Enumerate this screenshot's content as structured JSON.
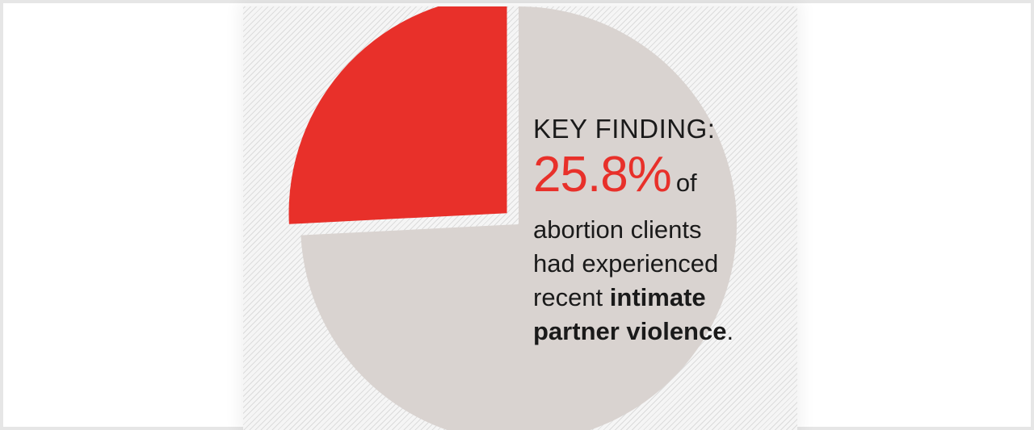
{
  "chart_data": {
    "type": "pie",
    "slices": [
      {
        "value": 25.8,
        "color": "#e8302a",
        "exploded": true
      },
      {
        "value": 74.2,
        "color": "#d9d3d0",
        "exploded": false
      }
    ],
    "title": "KEY FINDING:",
    "annotation": {
      "stat": "25.8%",
      "of": "of",
      "line1": "abortion clients",
      "line2": "had experienced",
      "line3_plain": "recent",
      "line3_bold": "intimate",
      "line4_bold": "partner violence",
      "line4_end": "."
    }
  }
}
